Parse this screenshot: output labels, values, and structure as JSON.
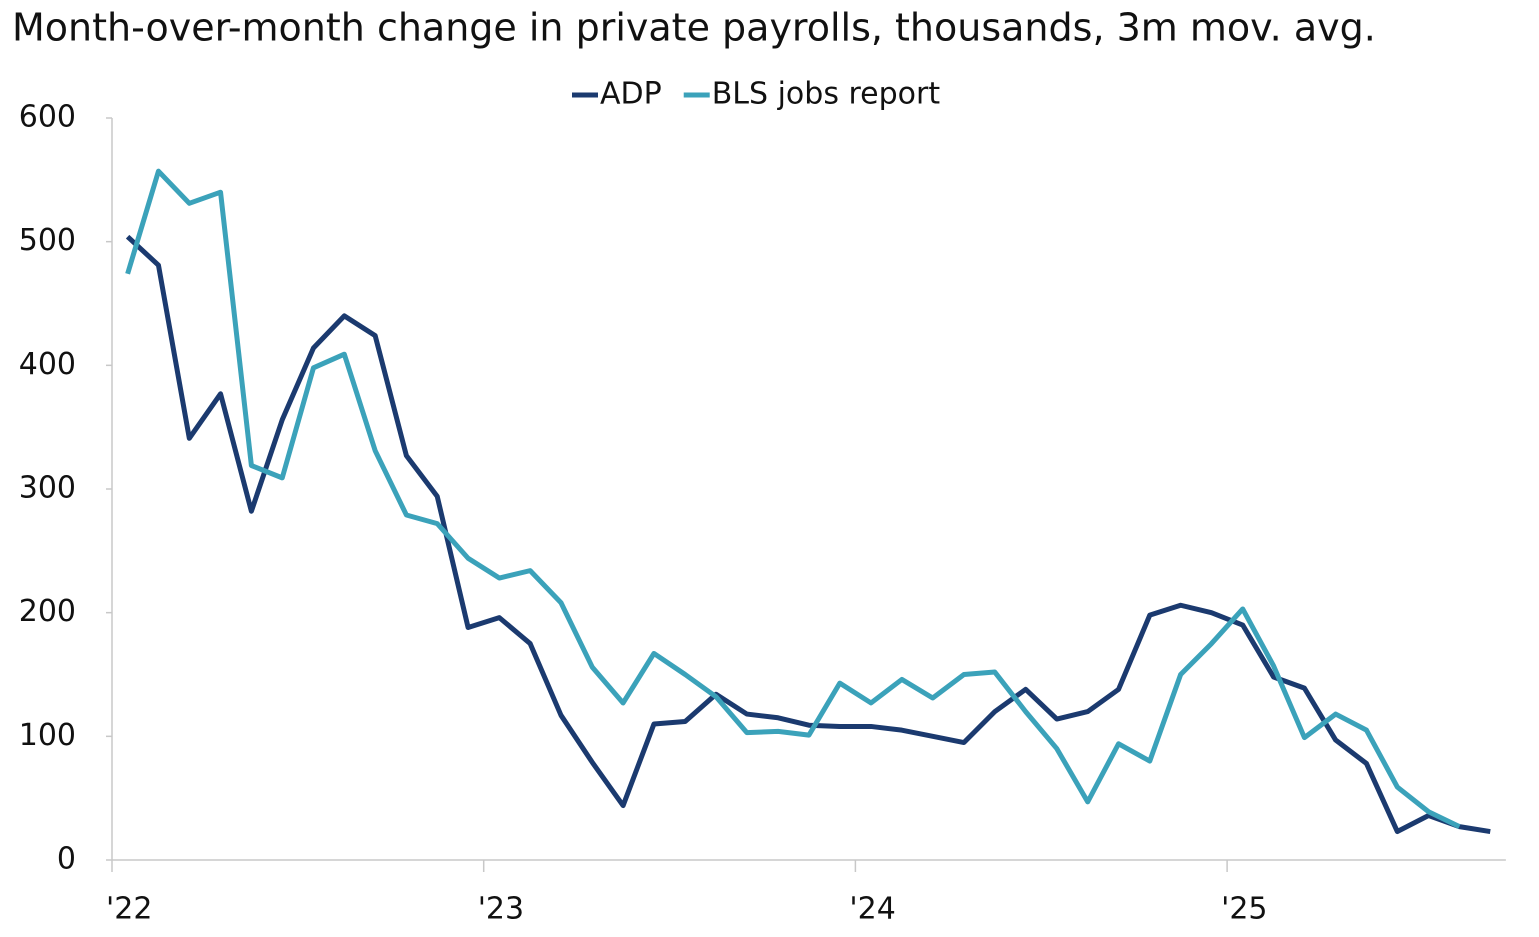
{
  "chart_data": {
    "type": "line",
    "title": "Month-over-month change in private payrolls, thousands, 3m mov. avg.",
    "x": [
      2022.042,
      2022.125,
      2022.208,
      2022.292,
      2022.375,
      2022.458,
      2022.542,
      2022.625,
      2022.708,
      2022.792,
      2022.875,
      2022.958,
      2023.042,
      2023.125,
      2023.208,
      2023.292,
      2023.375,
      2023.458,
      2023.542,
      2023.625,
      2023.708,
      2023.792,
      2023.875,
      2023.958,
      2024.042,
      2024.125,
      2024.208,
      2024.292,
      2024.375,
      2024.458,
      2024.542,
      2024.625,
      2024.708,
      2024.792,
      2024.875,
      2024.958,
      2025.042,
      2025.125,
      2025.208,
      2025.292,
      2025.375,
      2025.458,
      2025.542,
      2025.625,
      2025.708
    ],
    "series": [
      {
        "name": "ADP",
        "color": "#1b3a6f",
        "values": [
          504,
          481,
          341,
          377,
          282,
          356,
          414,
          440,
          424,
          327,
          294,
          188,
          196,
          175,
          117,
          79,
          44,
          110,
          112,
          134,
          118,
          115,
          109,
          108,
          108,
          105,
          100,
          95,
          120,
          138,
          114,
          120,
          138,
          198,
          206,
          200,
          190,
          148,
          139,
          97,
          78,
          23,
          36,
          27,
          23
        ]
      },
      {
        "name": "BLS jobs report",
        "color": "#3ba2ba",
        "values": [
          474,
          557,
          531,
          540,
          319,
          309,
          398,
          409,
          331,
          279,
          272,
          244,
          228,
          234,
          208,
          156,
          127,
          167,
          150,
          132,
          103,
          104,
          101,
          143,
          127,
          146,
          131,
          150,
          152,
          120,
          90,
          47,
          94,
          80,
          150,
          175,
          203,
          157,
          99,
          118,
          105,
          59,
          39,
          27,
          null
        ]
      }
    ],
    "xlim": [
      2022,
      2025.75
    ],
    "xticks": [
      {
        "value": 2022,
        "label": "'22"
      },
      {
        "value": 2023,
        "label": "'23"
      },
      {
        "value": 2024,
        "label": "'24"
      },
      {
        "value": 2025,
        "label": "'25"
      }
    ],
    "ylim": [
      0,
      600
    ],
    "yticks": [
      0,
      100,
      200,
      300,
      400,
      500,
      600
    ],
    "grid": false,
    "legend": "top"
  }
}
